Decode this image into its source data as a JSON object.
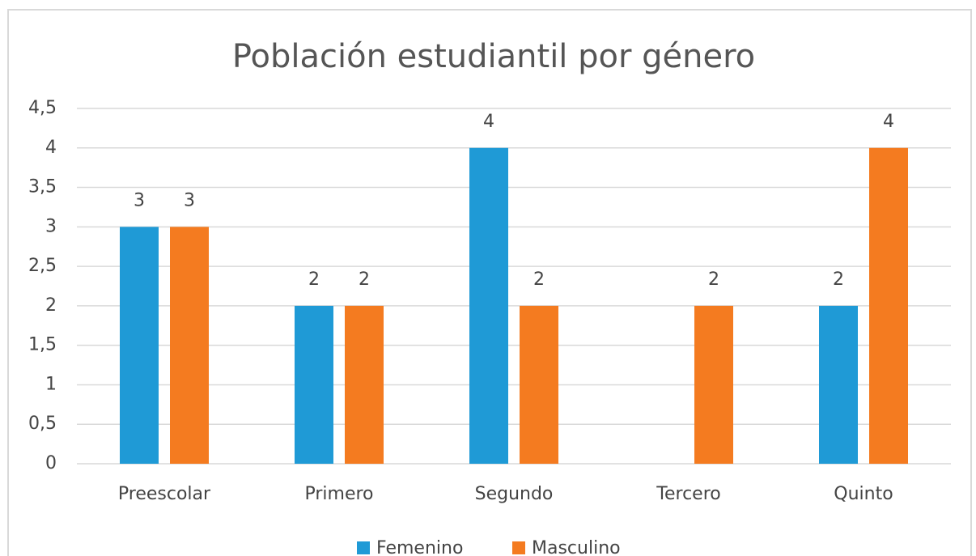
{
  "chart_data": {
    "type": "bar",
    "title": "Población estudiantil por género",
    "categories": [
      "Preescolar",
      "Primero",
      "Segundo",
      "Tercero",
      "Quinto"
    ],
    "series": [
      {
        "name": "Femenino",
        "color": "#1f9ad6",
        "values": [
          3,
          2,
          4,
          null,
          2
        ]
      },
      {
        "name": "Masculino",
        "color": "#f47b20",
        "values": [
          3,
          2,
          2,
          2,
          4
        ]
      }
    ],
    "ylim": [
      0,
      4.5
    ],
    "yticks": [
      0,
      {
        "value": 0.5,
        "label": "0,5"
      },
      1,
      {
        "value": 1.5,
        "label": "1,5"
      },
      2,
      {
        "value": 2.5,
        "label": "2,5"
      },
      3,
      {
        "value": 3.5,
        "label": "3,5"
      },
      4,
      {
        "value": 4.5,
        "label": "4,5"
      }
    ],
    "grid": true,
    "legend": "bottom"
  }
}
